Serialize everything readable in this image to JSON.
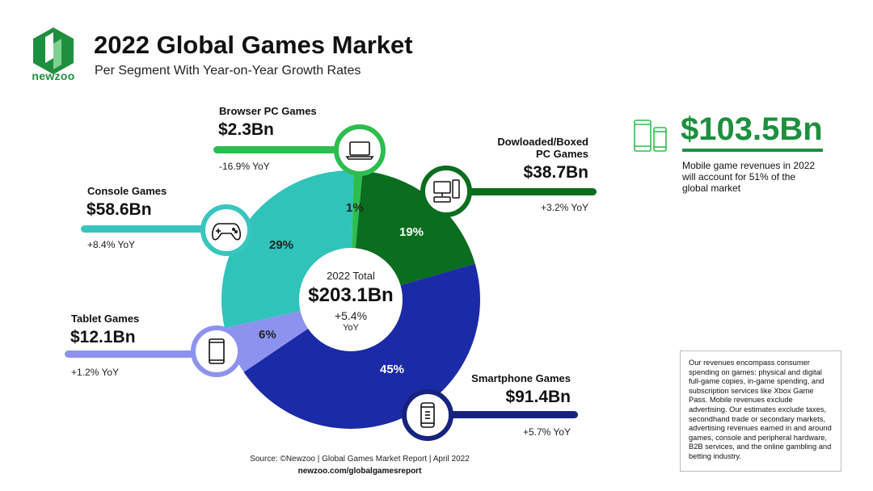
{
  "header": {
    "logo_text": "newzoo",
    "title": "2022 Global Games Market",
    "subtitle": "Per Segment With Year-on-Year Growth Rates"
  },
  "colors": {
    "browser": "#2dbd4f",
    "downloaded": "#0b6d1e",
    "smartphone": "#1b2aa6",
    "tablet": "#8c93ef",
    "console": "#2fc3b9",
    "brand": "#1e8f3e",
    "console_line": "#38c5be",
    "smartphone_line": "#17237e"
  },
  "chart_data": {
    "type": "pie",
    "subtype": "donut",
    "title": "2022 Global Games Market",
    "subtitle": "Per Segment With Year-on-Year Growth Rates",
    "total": {
      "label": "2022 Total",
      "value": "$203.1Bn",
      "yoy": "+5.4%",
      "yoy_unit": "YoY"
    },
    "segments": [
      {
        "key": "browser",
        "name": "Browser PC Games",
        "value_bn": 2.3,
        "value_label": "$2.3Bn",
        "share": 1,
        "share_label": "1%",
        "yoy": "-16.9% YoY",
        "icon": "laptop-icon"
      },
      {
        "key": "downloaded",
        "name_lines": [
          "Dowloaded/Boxed",
          "PC Games"
        ],
        "value_bn": 38.7,
        "value_label": "$38.7Bn",
        "share": 19,
        "share_label": "19%",
        "yoy": "+3.2% YoY",
        "icon": "desktop-pc-icon"
      },
      {
        "key": "smartphone",
        "name": "Smartphone Games",
        "value_bn": 91.4,
        "value_label": "$91.4Bn",
        "share": 45,
        "share_label": "45%",
        "yoy": "+5.7% YoY",
        "icon": "smartphone-icon"
      },
      {
        "key": "tablet",
        "name": "Tablet Games",
        "value_bn": 12.1,
        "value_label": "$12.1Bn",
        "share": 6,
        "share_label": "6%",
        "yoy": "+1.2% YoY",
        "icon": "tablet-icon"
      },
      {
        "key": "console",
        "name": "Console Games",
        "value_bn": 58.6,
        "value_label": "$58.6Bn",
        "share": 29,
        "share_label": "29%",
        "yoy": "+8.4% YoY",
        "icon": "gamepad-icon"
      }
    ]
  },
  "mobile_callout": {
    "value": "$103.5Bn",
    "note": "Mobile game revenues in 2022 will account for 51% of the global market",
    "icon": "phone-tablet-icon"
  },
  "disclaimer": "Our revenues encompass consumer spending on games: physical and digital full-game copies, in-game spending, and subscription services like Xbox Game Pass. Mobile revenues exclude advertising. Our estimates exclude taxes, secondhand trade or secondary markets, advertising revenues earned in and around games, console and peripheral hardware, B2B services, and the online gambling and betting industry.",
  "footer": {
    "source": "Source: ©Newzoo | Global Games Market Report | April 2022",
    "url": "newzoo.com/globalgamesreport"
  }
}
